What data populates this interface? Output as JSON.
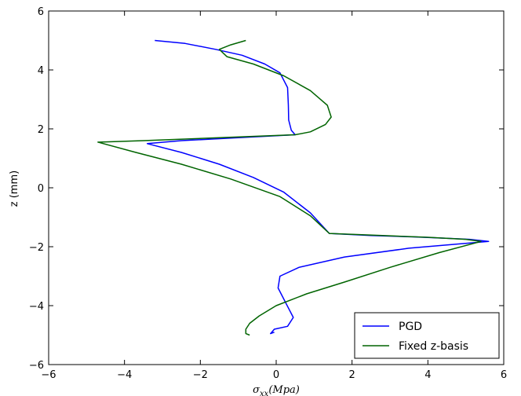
{
  "chart_data": {
    "type": "line",
    "title": "",
    "xlabel": "σ_xx(Mpa)",
    "ylabel": "z (mm)",
    "xlim": [
      -6,
      6
    ],
    "ylim": [
      -6,
      6
    ],
    "xticks": [
      -6,
      -4,
      -2,
      0,
      2,
      4,
      6
    ],
    "yticks": [
      -6,
      -4,
      -2,
      0,
      2,
      4,
      6
    ],
    "xtick_labels": [
      "−6",
      "−4",
      "−2",
      "0",
      "2",
      "4",
      "6"
    ],
    "ytick_labels": [
      "−6",
      "−4",
      "−2",
      "0",
      "2",
      "4",
      "6"
    ],
    "grid": false,
    "legend_position": "lower-right",
    "series": [
      {
        "name": "PGD",
        "color": "#0000ff",
        "points": [
          [
            -3.2,
            5.0
          ],
          [
            -2.4,
            4.9
          ],
          [
            -1.6,
            4.7
          ],
          [
            -0.9,
            4.5
          ],
          [
            -0.3,
            4.2
          ],
          [
            0.1,
            3.9
          ],
          [
            0.3,
            3.4
          ],
          [
            0.32,
            2.8
          ],
          [
            0.33,
            2.3
          ],
          [
            0.4,
            1.95
          ],
          [
            0.5,
            1.8
          ],
          [
            -1.0,
            1.7
          ],
          [
            -2.5,
            1.6
          ],
          [
            -3.4,
            1.5
          ],
          [
            -2.5,
            1.2
          ],
          [
            -1.5,
            0.8
          ],
          [
            -0.6,
            0.35
          ],
          [
            0.2,
            -0.15
          ],
          [
            0.9,
            -0.85
          ],
          [
            1.4,
            -1.55
          ],
          [
            2.5,
            -1.62
          ],
          [
            3.7,
            -1.67
          ],
          [
            4.6,
            -1.72
          ],
          [
            5.1,
            -1.75
          ],
          [
            5.6,
            -1.82
          ],
          [
            3.5,
            -2.05
          ],
          [
            1.8,
            -2.35
          ],
          [
            0.6,
            -2.7
          ],
          [
            0.1,
            -3.0
          ],
          [
            0.05,
            -3.4
          ],
          [
            0.25,
            -3.9
          ],
          [
            0.45,
            -4.4
          ],
          [
            0.3,
            -4.7
          ],
          [
            -0.05,
            -4.8
          ],
          [
            -0.15,
            -4.95
          ],
          [
            -0.05,
            -4.9
          ]
        ]
      },
      {
        "name": "Fixed z-basis",
        "color": "#006400",
        "points": [
          [
            -0.8,
            5.0
          ],
          [
            -1.2,
            4.85
          ],
          [
            -1.5,
            4.7
          ],
          [
            -1.3,
            4.45
          ],
          [
            -0.6,
            4.2
          ],
          [
            0.2,
            3.8
          ],
          [
            0.9,
            3.3
          ],
          [
            1.35,
            2.8
          ],
          [
            1.45,
            2.4
          ],
          [
            1.3,
            2.15
          ],
          [
            0.9,
            1.9
          ],
          [
            0.5,
            1.8
          ],
          [
            -1.5,
            1.7
          ],
          [
            -3.5,
            1.6
          ],
          [
            -4.7,
            1.55
          ],
          [
            -3.7,
            1.2
          ],
          [
            -2.5,
            0.8
          ],
          [
            -1.2,
            0.3
          ],
          [
            0.1,
            -0.3
          ],
          [
            0.9,
            -0.95
          ],
          [
            1.4,
            -1.55
          ],
          [
            2.8,
            -1.62
          ],
          [
            4.0,
            -1.68
          ],
          [
            5.0,
            -1.75
          ],
          [
            5.4,
            -1.82
          ],
          [
            4.3,
            -2.2
          ],
          [
            3.0,
            -2.7
          ],
          [
            1.8,
            -3.2
          ],
          [
            0.8,
            -3.6
          ],
          [
            0.0,
            -4.0
          ],
          [
            -0.45,
            -4.35
          ],
          [
            -0.7,
            -4.6
          ],
          [
            -0.8,
            -4.8
          ],
          [
            -0.8,
            -4.95
          ],
          [
            -0.7,
            -5.0
          ]
        ]
      }
    ]
  }
}
